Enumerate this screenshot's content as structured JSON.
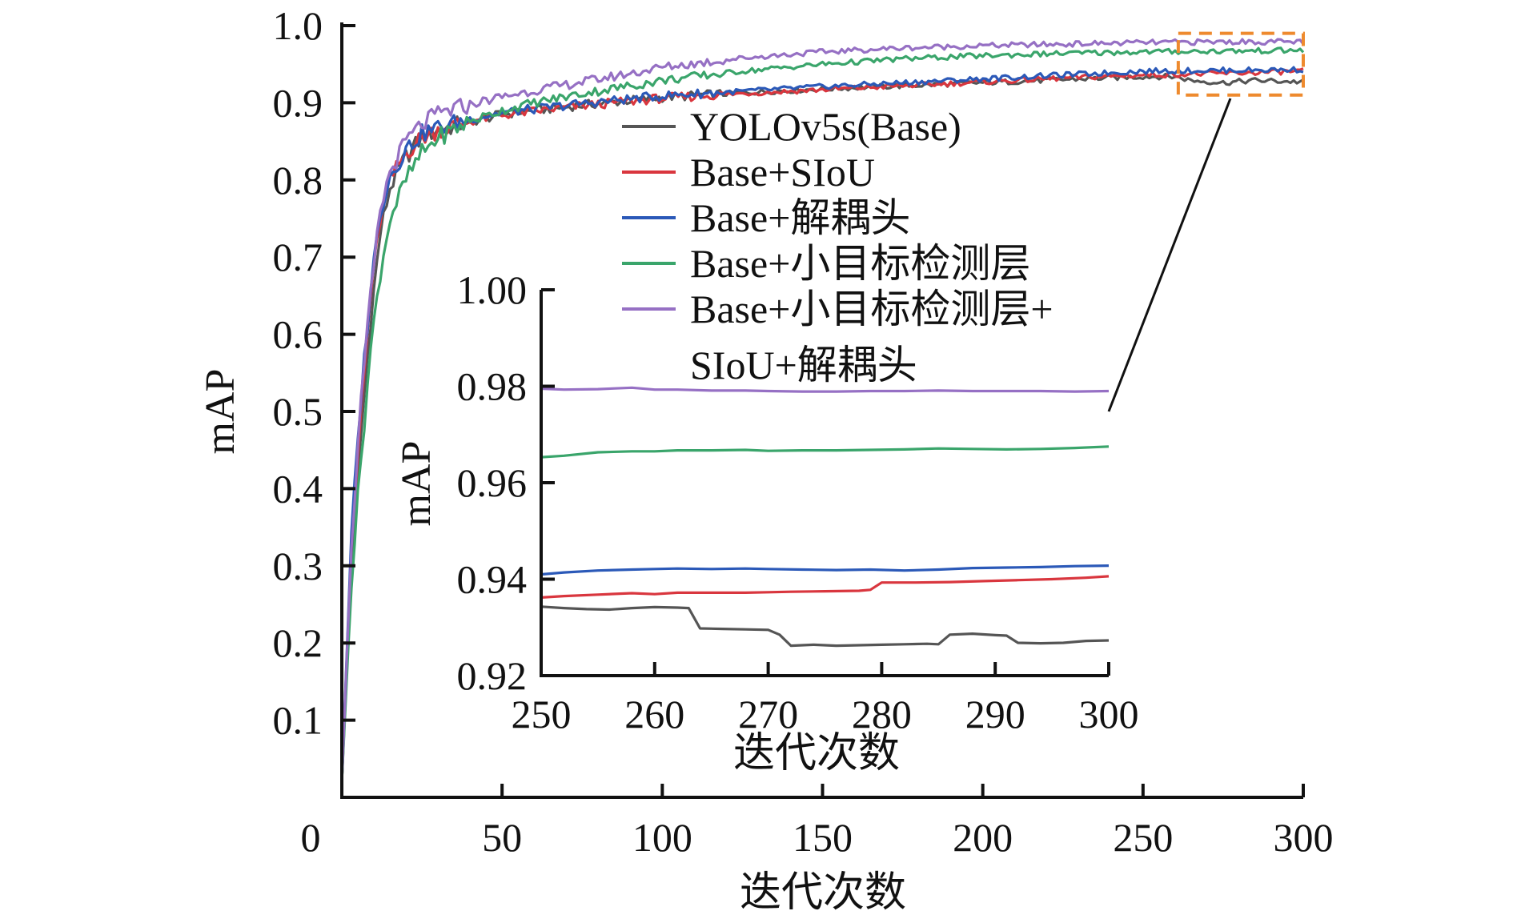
{
  "chart_data": [
    {
      "type": "line",
      "xlabel": "迭代次数",
      "ylabel": "mAP",
      "xlim": [
        0,
        300
      ],
      "ylim": [
        0,
        1.0
      ],
      "x_ticks": [
        "0",
        "50",
        "100",
        "150",
        "200",
        "250",
        "300"
      ],
      "y_ticks": [
        "0.1",
        "0.2",
        "0.3",
        "0.4",
        "0.5",
        "0.6",
        "0.7",
        "0.8",
        "0.9",
        "1.0"
      ],
      "legend_position": "upper-center",
      "zoom_box_x_range": [
        260,
        300
      ],
      "zoom_box_y_range": [
        0.91,
        0.99
      ],
      "series": [
        {
          "name": "YOLOv5s(Base)",
          "color": "#555555",
          "x": [
            0,
            3,
            6,
            9,
            12,
            15,
            20,
            25,
            30,
            40,
            50,
            60,
            75,
            90,
            100,
            125,
            150,
            175,
            200,
            225,
            250,
            260,
            265,
            275,
            285,
            300
          ],
          "y": [
            0.02,
            0.3,
            0.47,
            0.62,
            0.73,
            0.79,
            0.83,
            0.855,
            0.865,
            0.875,
            0.885,
            0.89,
            0.897,
            0.903,
            0.907,
            0.913,
            0.918,
            0.922,
            0.926,
            0.93,
            0.934,
            0.934,
            0.929,
            0.926,
            0.929,
            0.927
          ]
        },
        {
          "name": "Base+SIoU",
          "color": "#d9363e",
          "x": [
            0,
            3,
            6,
            9,
            12,
            15,
            20,
            25,
            30,
            40,
            50,
            60,
            75,
            90,
            100,
            125,
            150,
            175,
            200,
            225,
            250,
            275,
            300
          ],
          "y": [
            0.02,
            0.32,
            0.5,
            0.65,
            0.75,
            0.8,
            0.835,
            0.855,
            0.865,
            0.876,
            0.884,
            0.889,
            0.896,
            0.902,
            0.906,
            0.912,
            0.917,
            0.922,
            0.927,
            0.932,
            0.936,
            0.938,
            0.941
          ]
        },
        {
          "name": "Base+解耦头",
          "color": "#2b59b8",
          "x": [
            0,
            3,
            6,
            9,
            12,
            15,
            20,
            25,
            30,
            40,
            50,
            60,
            75,
            90,
            100,
            125,
            150,
            175,
            200,
            225,
            250,
            275,
            300
          ],
          "y": [
            0.02,
            0.34,
            0.52,
            0.66,
            0.76,
            0.805,
            0.84,
            0.86,
            0.868,
            0.879,
            0.887,
            0.892,
            0.899,
            0.905,
            0.909,
            0.915,
            0.921,
            0.926,
            0.931,
            0.936,
            0.941,
            0.942,
            0.943
          ]
        },
        {
          "name": "Base+小目标检测层",
          "color": "#3aa56b",
          "x": [
            0,
            3,
            6,
            9,
            12,
            15,
            20,
            25,
            30,
            40,
            50,
            60,
            75,
            90,
            100,
            125,
            150,
            175,
            200,
            225,
            250,
            275,
            300
          ],
          "y": [
            0.02,
            0.28,
            0.44,
            0.58,
            0.68,
            0.75,
            0.8,
            0.835,
            0.855,
            0.876,
            0.89,
            0.9,
            0.912,
            0.922,
            0.929,
            0.941,
            0.95,
            0.957,
            0.961,
            0.964,
            0.966,
            0.967,
            0.968
          ]
        },
        {
          "name": "Base+小目标检测层+",
          "name_line2": "SIoU+解耦头",
          "color": "#9670c4",
          "x": [
            0,
            3,
            6,
            9,
            12,
            15,
            20,
            25,
            30,
            40,
            50,
            60,
            75,
            90,
            100,
            125,
            150,
            175,
            200,
            225,
            250,
            275,
            300
          ],
          "y": [
            0.02,
            0.33,
            0.51,
            0.65,
            0.76,
            0.81,
            0.85,
            0.872,
            0.885,
            0.898,
            0.908,
            0.916,
            0.927,
            0.938,
            0.946,
            0.958,
            0.966,
            0.971,
            0.974,
            0.976,
            0.978,
            0.979,
            0.979
          ]
        }
      ]
    },
    {
      "type": "line",
      "inset": true,
      "xlabel": "迭代次数",
      "ylabel": "mAP",
      "xlim": [
        250,
        300
      ],
      "ylim": [
        0.92,
        1.0
      ],
      "x_ticks": [
        "250",
        "260",
        "270",
        "280",
        "290",
        "300"
      ],
      "y_ticks": [
        "0.92",
        "0.94",
        "0.96",
        "0.98",
        "1.00"
      ],
      "series": [
        {
          "name": "YOLOv5s(Base)",
          "color": "#555555",
          "x": [
            250,
            252,
            254,
            256,
            258,
            260,
            262,
            263,
            264,
            266,
            268,
            270,
            271,
            272,
            274,
            276,
            278,
            280,
            282,
            284,
            285,
            286,
            288,
            290,
            291,
            292,
            294,
            296,
            298,
            300
          ],
          "y": [
            0.9343,
            0.934,
            0.9338,
            0.9337,
            0.934,
            0.9342,
            0.9341,
            0.934,
            0.9298,
            0.9297,
            0.9296,
            0.9295,
            0.9285,
            0.9262,
            0.9264,
            0.9262,
            0.9263,
            0.9264,
            0.9265,
            0.9266,
            0.9265,
            0.9285,
            0.9287,
            0.9284,
            0.9283,
            0.9268,
            0.9267,
            0.9268,
            0.9272,
            0.9273
          ]
        },
        {
          "name": "Base+SIoU",
          "color": "#d9363e",
          "x": [
            250,
            252,
            255,
            258,
            260,
            262,
            265,
            268,
            270,
            272,
            275,
            278,
            279,
            280,
            283,
            286,
            289,
            292,
            295,
            298,
            300
          ],
          "y": [
            0.9362,
            0.9365,
            0.9368,
            0.9371,
            0.9369,
            0.9372,
            0.9372,
            0.9372,
            0.9373,
            0.9374,
            0.9375,
            0.9376,
            0.9378,
            0.9393,
            0.9393,
            0.9394,
            0.9396,
            0.9398,
            0.94,
            0.9403,
            0.9406
          ]
        },
        {
          "name": "Base+解耦头",
          "color": "#2b59b8",
          "x": [
            250,
            252,
            255,
            258,
            260,
            262,
            265,
            268,
            270,
            273,
            276,
            279,
            282,
            285,
            288,
            291,
            294,
            297,
            300
          ],
          "y": [
            0.941,
            0.9414,
            0.9418,
            0.942,
            0.9421,
            0.9422,
            0.9421,
            0.9422,
            0.9421,
            0.942,
            0.9419,
            0.942,
            0.9418,
            0.942,
            0.9423,
            0.9424,
            0.9425,
            0.9427,
            0.9428
          ]
        },
        {
          "name": "Base+小目标检测层",
          "color": "#3aa56b",
          "x": [
            250,
            252,
            255,
            258,
            260,
            262,
            265,
            268,
            270,
            273,
            276,
            279,
            282,
            285,
            288,
            291,
            294,
            297,
            300
          ],
          "y": [
            0.9653,
            0.9656,
            0.9663,
            0.9665,
            0.9665,
            0.9667,
            0.9667,
            0.9668,
            0.9666,
            0.9667,
            0.9667,
            0.9668,
            0.9669,
            0.9671,
            0.967,
            0.9669,
            0.967,
            0.9672,
            0.9675
          ]
        },
        {
          "name": "Base+小目标检测层+",
          "name_line2": "SIoU+解耦头",
          "color": "#9670c4",
          "x": [
            250,
            252,
            255,
            258,
            260,
            262,
            265,
            268,
            270,
            273,
            276,
            279,
            282,
            285,
            288,
            291,
            294,
            297,
            300
          ],
          "y": [
            0.9795,
            0.9793,
            0.9794,
            0.9797,
            0.9793,
            0.9793,
            0.9791,
            0.9791,
            0.979,
            0.9789,
            0.9789,
            0.979,
            0.979,
            0.9791,
            0.979,
            0.979,
            0.979,
            0.9789,
            0.979
          ]
        }
      ]
    }
  ]
}
